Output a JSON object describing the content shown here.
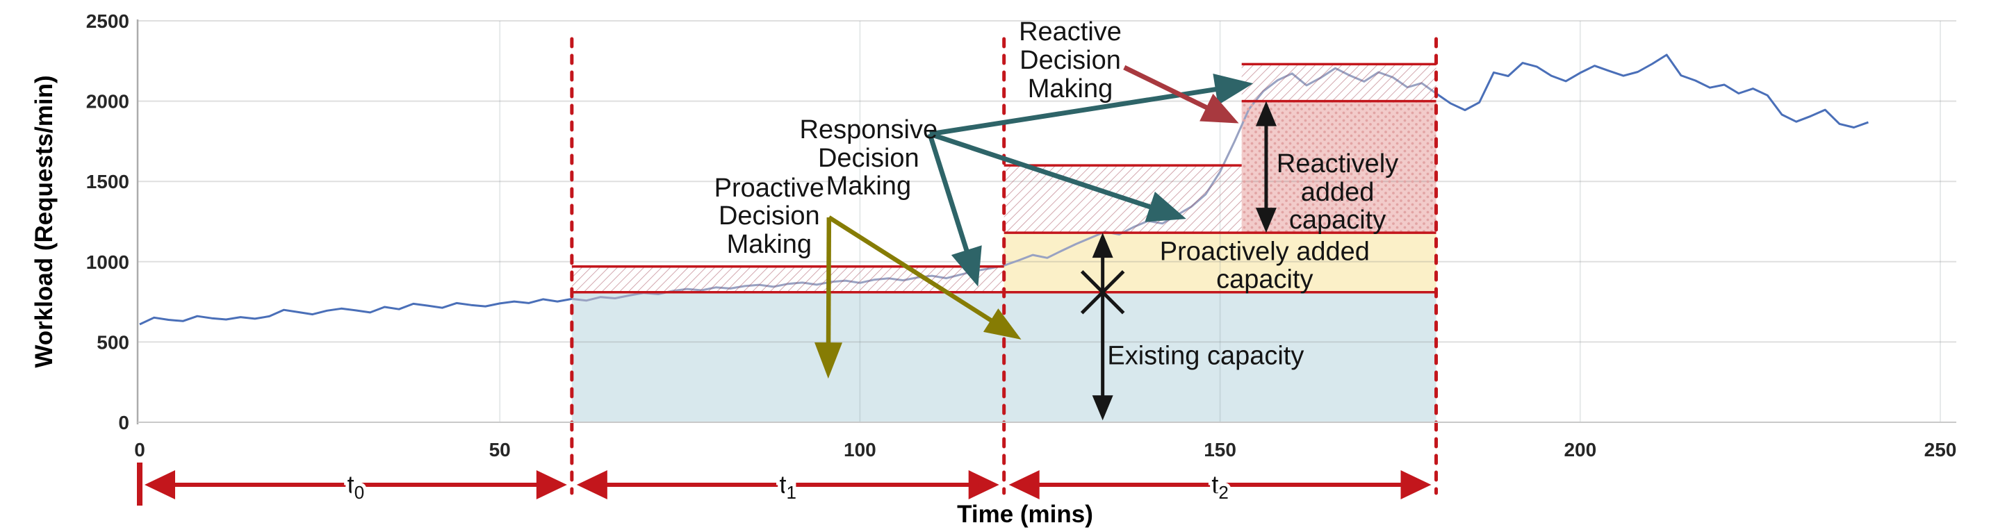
{
  "chart_data": {
    "type": "line",
    "title": "",
    "xlabel": "Time (mins)",
    "ylabel": "Workload (Requests/min)",
    "x_ticks": [
      0,
      50,
      100,
      150,
      200,
      250
    ],
    "y_ticks": [
      0,
      500,
      1000,
      1500,
      2000,
      2500
    ],
    "xlim": [
      0,
      252
    ],
    "ylim": [
      0,
      2500
    ],
    "grid": "both",
    "legend": "none",
    "series": [
      {
        "name": "Workload",
        "color": "#4A6FB8",
        "muted_color": "#99A2C2",
        "muted_range": [
          60,
          180
        ],
        "x": [
          0,
          2,
          4,
          6,
          8,
          10,
          12,
          14,
          16,
          18,
          20,
          22,
          24,
          26,
          28,
          30,
          32,
          34,
          36,
          38,
          40,
          42,
          44,
          46,
          48,
          50,
          52,
          54,
          56,
          58,
          60,
          62,
          64,
          66,
          68,
          70,
          72,
          74,
          76,
          78,
          80,
          82,
          84,
          86,
          88,
          90,
          92,
          94,
          96,
          98,
          100,
          102,
          104,
          106,
          108,
          110,
          112,
          114,
          116,
          118,
          120,
          122,
          124,
          126,
          128,
          130,
          132,
          134,
          136,
          138,
          140,
          142,
          144,
          146,
          148,
          150,
          152,
          154,
          156,
          158,
          160,
          162,
          164,
          166,
          168,
          170,
          172,
          174,
          176,
          178,
          180,
          182,
          184,
          186,
          188,
          190,
          192,
          194,
          196,
          198,
          200,
          202,
          204,
          206,
          208,
          210,
          212,
          214,
          216,
          218,
          220,
          222,
          224,
          226,
          228,
          230,
          232,
          234,
          236,
          238,
          240
        ],
        "y": [
          610,
          652,
          638,
          630,
          661,
          648,
          640,
          655,
          645,
          660,
          700,
          686,
          672,
          695,
          708,
          697,
          684,
          718,
          704,
          738,
          726,
          713,
          742,
          730,
          722,
          740,
          752,
          742,
          766,
          752,
          768,
          758,
          780,
          772,
          790,
          806,
          798,
          818,
          830,
          822,
          840,
          833,
          848,
          856,
          844,
          862,
          870,
          857,
          874,
          882,
          868,
          888,
          896,
          884,
          902,
          912,
          897,
          920,
          942,
          958,
          976,
          1008,
          1042,
          1024,
          1068,
          1110,
          1148,
          1186,
          1170,
          1216,
          1254,
          1238,
          1290,
          1342,
          1420,
          1560,
          1748,
          1950,
          2062,
          2130,
          2172,
          2098,
          2146,
          2205,
          2160,
          2122,
          2180,
          2148,
          2086,
          2112,
          2048,
          1986,
          1944,
          1992,
          2178,
          2156,
          2238,
          2214,
          2158,
          2124,
          2176,
          2220,
          2188,
          2158,
          2182,
          2232,
          2288,
          2160,
          2128,
          2084,
          2102,
          2048,
          2078,
          2036,
          1916,
          1872,
          1906,
          1946,
          1858,
          1836,
          1868
        ]
      }
    ],
    "boundaries": [
      60,
      120,
      180
    ],
    "phases": [
      {
        "base": "t",
        "sub": "0",
        "from": 0,
        "to": 60
      },
      {
        "base": "t",
        "sub": "1",
        "from": 60,
        "to": 120
      },
      {
        "base": "t",
        "sub": "2",
        "from": 120,
        "to": 180
      }
    ],
    "regions": [
      {
        "id": "existing-capacity",
        "t": [
          60,
          180
        ],
        "v": [
          0,
          810
        ],
        "style": "solid",
        "color": "#D8E8ED"
      },
      {
        "id": "proactive-margin-hatch",
        "t": [
          60,
          120
        ],
        "v": [
          810,
          970
        ],
        "style": "hatch"
      },
      {
        "id": "proactively-added-capacity",
        "t": [
          120,
          180
        ],
        "v": [
          810,
          1180
        ],
        "style": "solid",
        "color": "#FBF0C8"
      },
      {
        "id": "responsive-margin-hatch",
        "t": [
          120,
          153
        ],
        "v": [
          1180,
          1600
        ],
        "style": "hatch"
      },
      {
        "id": "reactively-added-capacity",
        "t": [
          153,
          180
        ],
        "v": [
          1180,
          2000
        ],
        "style": "dots",
        "color": "#F2CBCA"
      },
      {
        "id": "reactive-margin-hatch",
        "t": [
          153,
          180
        ],
        "v": [
          2000,
          2230
        ],
        "style": "hatch"
      }
    ],
    "capacity_lines": [
      {
        "v": 810,
        "t": [
          60,
          180
        ]
      },
      {
        "v": 970,
        "t": [
          60,
          120
        ]
      },
      {
        "v": 1180,
        "t": [
          120,
          180
        ]
      },
      {
        "v": 1600,
        "t": [
          120,
          153
        ]
      },
      {
        "v": 2000,
        "t": [
          153,
          180
        ]
      },
      {
        "v": 2230,
        "t": [
          153,
          180
        ]
      }
    ],
    "measures": [
      {
        "id": "existing-and-proactive-measure",
        "t": 133.7,
        "v": [
          12,
          1180
        ],
        "cross_v": 810
      },
      {
        "id": "reactive-measure",
        "t": 156.4,
        "v": [
          1180,
          2000
        ]
      }
    ],
    "labels": {
      "responsive": {
        "text": "Responsive\nDecision\nMaking",
        "t": 101.2,
        "v": 1644
      },
      "reactive": {
        "text": "Reactive\nDecision\nMaking",
        "t": 129.2,
        "v": 2252
      },
      "proactive": {
        "text": "Proactive\nDecision\nMaking",
        "t": 87.4,
        "v": 1282
      },
      "reactively_added": {
        "text": "Reactively\nadded\ncapacity",
        "t": 166.3,
        "v": 1432
      },
      "proactively_added": {
        "text": "Proactively added\ncapacity",
        "t": 156.2,
        "v": 975
      },
      "existing": {
        "text": "Existing capacity",
        "t": 148.0,
        "v": 412
      }
    },
    "arrows": [
      {
        "id": "responsive-to-reactive-step",
        "color": "teal",
        "from": {
          "t": 109.7,
          "v": 1795
        },
        "to": {
          "t": 154.6,
          "v": 2110
        }
      },
      {
        "id": "responsive-to-climb",
        "color": "teal",
        "from": {
          "t": 109.7,
          "v": 1795
        },
        "to": {
          "t": 145.3,
          "v": 1267
        }
      },
      {
        "id": "responsive-to-margin",
        "color": "teal",
        "from": {
          "t": 109.7,
          "v": 1795
        },
        "to": {
          "t": 116.4,
          "v": 845
        }
      },
      {
        "id": "reactive-pointer",
        "color": "darkred",
        "from": {
          "t": 136.7,
          "v": 2210
        },
        "to": {
          "t": 152.6,
          "v": 1862
        }
      },
      {
        "id": "proactive-pointer-down",
        "color": "olive",
        "from": {
          "t": 95.7,
          "v": 1276
        },
        "to": {
          "t": 95.6,
          "v": 272
        }
      },
      {
        "id": "proactive-pointer-diagonal",
        "color": "olive",
        "from": {
          "t": 95.7,
          "v": 1276
        },
        "to": {
          "t": 122.4,
          "v": 515
        }
      }
    ],
    "colors": {
      "accent_red": "#C3161C",
      "teal": "#2E6468",
      "darkred": "#A8393F",
      "olive": "#867C04",
      "black": "#161616",
      "grid": "#D9D9D9",
      "tick_text": "#262626"
    }
  }
}
